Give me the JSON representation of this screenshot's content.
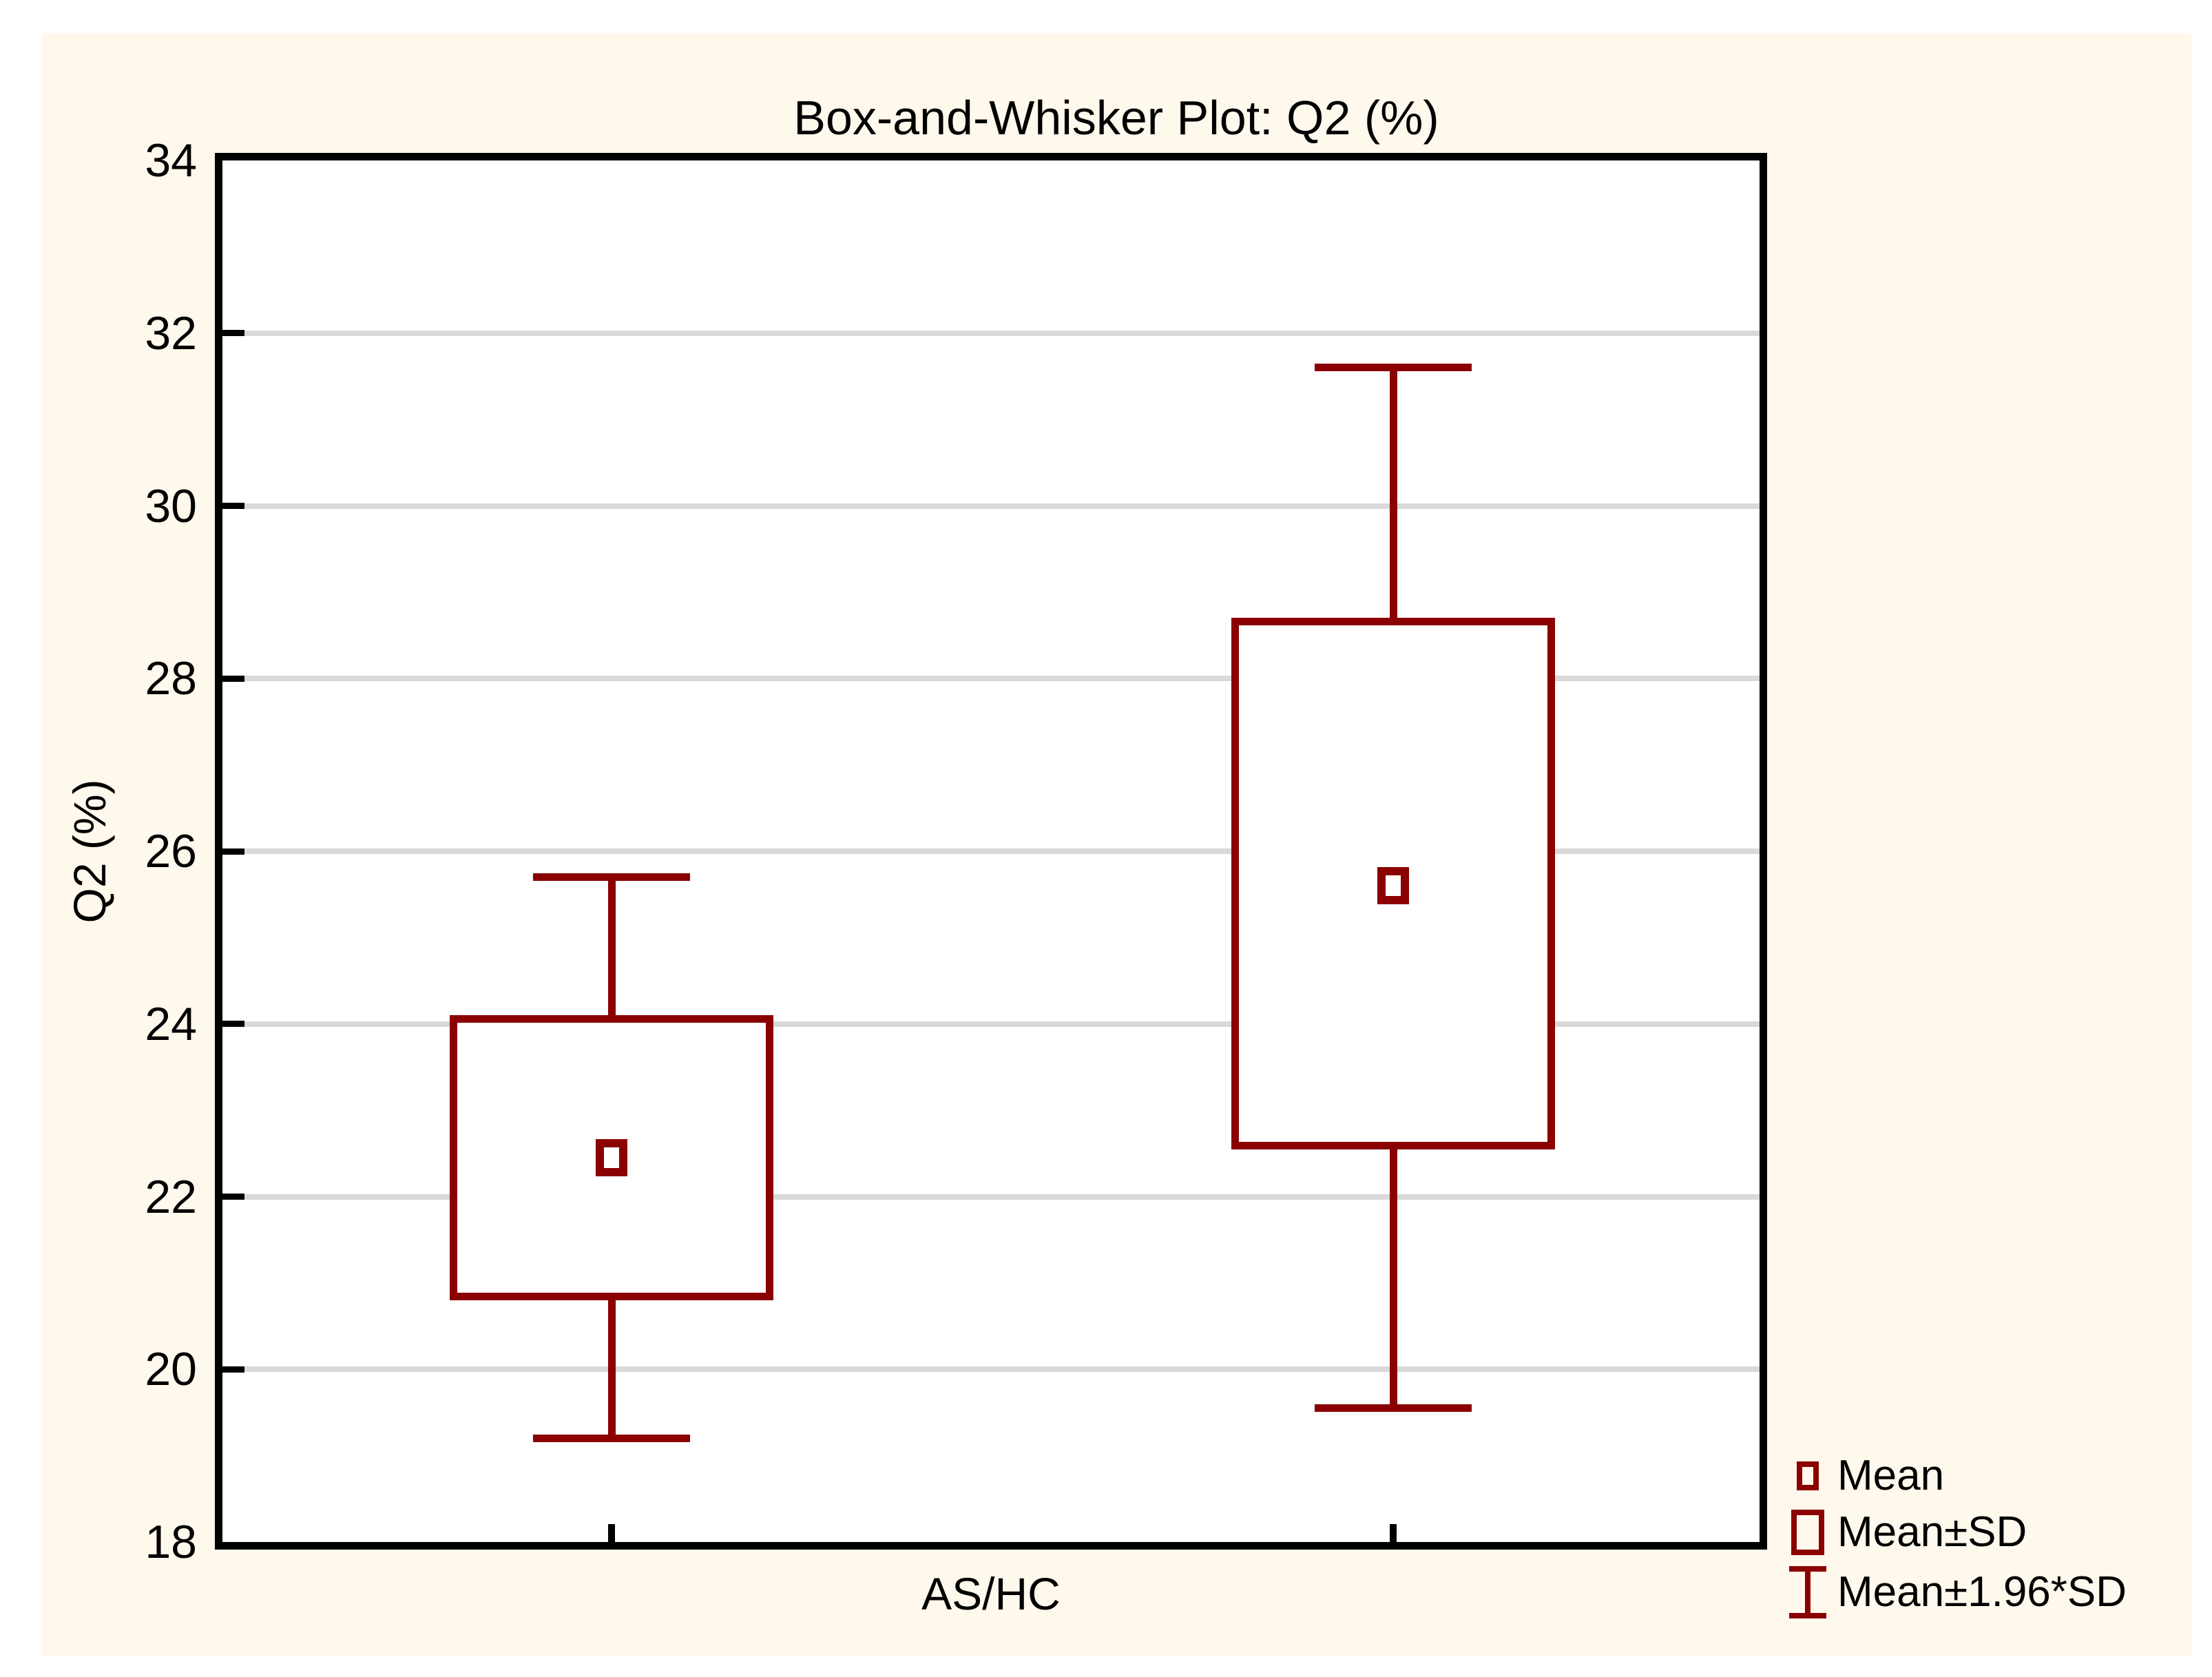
{
  "window": {
    "outer_background": "#FFFFFF",
    "canvas_background": "#FFF8EC"
  },
  "colors": {
    "series": "#8B0000",
    "gridline": "#D9D9D9",
    "axis": "#000000",
    "text": "#000000",
    "plot_background": "#FFFFFF"
  },
  "chart_data": {
    "type": "box",
    "title": "Box-and-Whisker Plot: Q2 (%)",
    "xlabel": "AS/HC",
    "ylabel": "Q2 (%)",
    "ylim": [
      18,
      34
    ],
    "yticks": [
      18,
      20,
      22,
      24,
      26,
      28,
      30,
      32,
      34
    ],
    "grid": true,
    "legend_position": "bottom-right",
    "groups": [
      {
        "position": "left",
        "mean": 22.45,
        "mean_minus_sd": 20.8,
        "mean_plus_sd": 24.1,
        "mean_minus_196sd": 19.2,
        "mean_plus_196sd": 25.7
      },
      {
        "position": "right",
        "mean": 25.6,
        "mean_minus_sd": 22.55,
        "mean_plus_sd": 28.7,
        "mean_minus_196sd": 19.55,
        "mean_plus_196sd": 31.6
      }
    ],
    "legend": [
      {
        "marker": "mean-square",
        "label": "Mean"
      },
      {
        "marker": "sd-box",
        "label": "Mean±SD"
      },
      {
        "marker": "whisker",
        "label": "Mean±1.96*SD"
      }
    ]
  }
}
